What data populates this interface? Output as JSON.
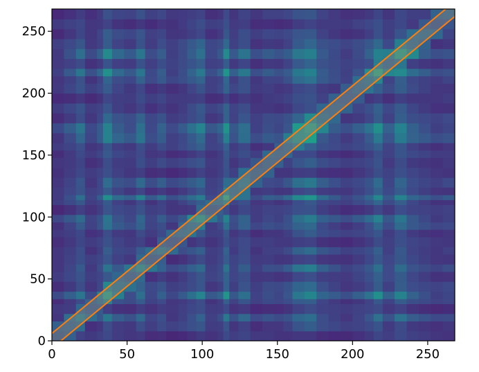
{
  "chart_data": {
    "type": "heatmap",
    "title": "",
    "xlabel": "",
    "ylabel": "",
    "xlim": [
      0,
      268
    ],
    "ylim": [
      0,
      268
    ],
    "x_ticks": [
      0,
      50,
      100,
      150,
      200,
      250
    ],
    "y_ticks": [
      0,
      50,
      100,
      150,
      200,
      250
    ],
    "x_tick_labels": [
      "0",
      "50",
      "100",
      "150",
      "200",
      "250"
    ],
    "y_tick_labels": [
      "0",
      "50",
      "100",
      "150",
      "200",
      "250"
    ],
    "colormap": "viridis",
    "value_range": [
      0,
      1
    ],
    "matrix_size": 268,
    "grid": false,
    "block_boundaries": [
      0,
      8,
      16,
      22,
      30,
      34,
      40,
      48,
      56,
      62,
      70,
      76,
      84,
      90,
      96,
      102,
      110,
      114,
      118,
      124,
      132,
      140,
      148,
      154,
      160,
      168,
      176,
      184,
      192,
      200,
      208,
      214,
      220,
      228,
      236,
      244,
      252,
      260,
      268
    ],
    "block_activity": [
      0.15,
      0.3,
      0.5,
      0.2,
      0.35,
      0.7,
      0.4,
      0.3,
      0.55,
      0.25,
      0.4,
      0.2,
      0.3,
      0.45,
      0.6,
      0.25,
      0.35,
      0.75,
      0.3,
      0.5,
      0.2,
      0.3,
      0.25,
      0.35,
      0.6,
      0.7,
      0.4,
      0.3,
      0.2,
      0.3,
      0.45,
      0.7,
      0.35,
      0.65,
      0.4,
      0.3,
      0.2,
      0.25
    ],
    "diagonal_band": {
      "half_width": 6,
      "shade_color": "#808080",
      "shade_opacity": 0.45,
      "edge_color": "#ff7f0e"
    }
  }
}
